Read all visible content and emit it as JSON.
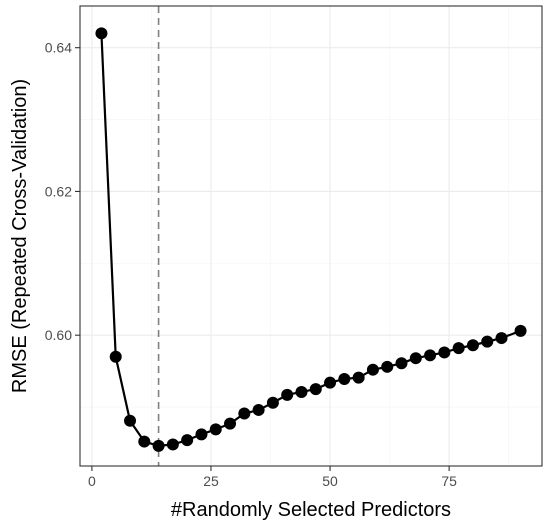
{
  "chart_data": {
    "type": "line",
    "xlabel": "#Randomly Selected Predictors",
    "ylabel": "RMSE (Repeated Cross-Validation)",
    "xlim": [
      -2.5,
      94.5
    ],
    "ylim": [
      0.5818,
      0.6458
    ],
    "x_ticks": [
      0,
      25,
      50,
      75
    ],
    "x_tick_labels": [
      "0",
      "25",
      "50",
      "75"
    ],
    "y_ticks": [
      0.6,
      0.62,
      0.64
    ],
    "y_tick_labels": [
      "0.60",
      "0.62",
      "0.64"
    ],
    "grid": true,
    "optimum_line_x": 14,
    "series": [
      {
        "x": [
          2,
          5,
          8,
          11,
          14,
          17,
          20,
          23,
          26,
          29,
          32,
          35,
          38,
          41,
          44,
          47,
          50,
          53,
          56,
          59,
          62,
          65,
          68,
          71,
          74,
          77,
          80,
          83,
          86,
          90
        ],
        "values": [
          0.642,
          0.597,
          0.5881,
          0.5852,
          0.5846,
          0.5848,
          0.5854,
          0.5862,
          0.5869,
          0.5877,
          0.5891,
          0.5896,
          0.5906,
          0.5917,
          0.5921,
          0.5925,
          0.5934,
          0.5939,
          0.5941,
          0.5952,
          0.5956,
          0.5961,
          0.5968,
          0.5972,
          0.5976,
          0.5982,
          0.5986,
          0.5991,
          0.5996,
          0.6006
        ]
      }
    ],
    "colors": {
      "line": "#000000",
      "point": "#000000",
      "grid_major": "#ebebeb",
      "grid_minor": "#f5f5f5",
      "panel_border": "#333333",
      "optimum_line": "#808080",
      "tick_label": "#4d4d4d"
    }
  }
}
